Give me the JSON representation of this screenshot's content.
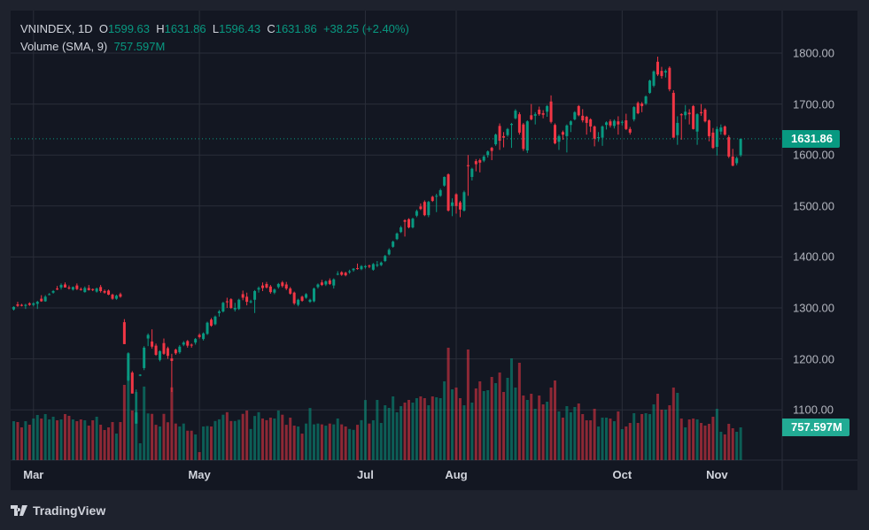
{
  "legend": {
    "symbol": "VNINDEX, 1D",
    "open_label": "O",
    "open": "1599.63",
    "high_label": "H",
    "high": "1631.86",
    "low_label": "L",
    "low": "1596.43",
    "close_label": "C",
    "close": "1631.86",
    "change": "+38.25 (+2.40%)",
    "volume_label": "Volume (SMA, 9)",
    "volume_value": "757.597M"
  },
  "price_badge": "1631.86",
  "volume_badge": "757.597M",
  "branding": "TradingView",
  "colors": {
    "up": "#089981",
    "down": "#f23645",
    "background": "#131722",
    "grid": "#2a2e39"
  },
  "chart_data": {
    "type": "candlestick",
    "symbol": "VNINDEX",
    "interval": "1D",
    "y_ticks": [
      1800,
      1700,
      1600,
      1500,
      1400,
      1300,
      1200,
      1100
    ],
    "y_tick_labels": [
      "1800.00",
      "1700.00",
      "1600.00",
      "1500.00",
      "1400.00",
      "1300.00",
      "1200.00",
      "1100.00"
    ],
    "x_tick_labels": [
      "Mar",
      "May",
      "Jul",
      "Aug",
      "Oct",
      "Nov"
    ],
    "grid": true,
    "last_price": 1631.86,
    "ohlc": [
      [
        1297,
        1303,
        1295,
        1302
      ],
      [
        1307,
        1312,
        1302,
        1304
      ],
      [
        1306,
        1308,
        1303,
        1304
      ],
      [
        1304,
        1308,
        1298,
        1306
      ],
      [
        1309,
        1311,
        1304,
        1306
      ],
      [
        1306,
        1311,
        1303,
        1309
      ],
      [
        1308,
        1314,
        1298,
        1312
      ],
      [
        1318,
        1325,
        1312,
        1313
      ],
      [
        1313,
        1325,
        1312,
        1322
      ],
      [
        1326,
        1329,
        1325,
        1327
      ],
      [
        1330,
        1335,
        1328,
        1333
      ],
      [
        1338,
        1343,
        1335,
        1336
      ],
      [
        1340,
        1348,
        1336,
        1345
      ],
      [
        1346,
        1350,
        1340,
        1340
      ],
      [
        1340,
        1344,
        1336,
        1339
      ],
      [
        1336,
        1342,
        1334,
        1341
      ],
      [
        1344,
        1348,
        1335,
        1337
      ],
      [
        1337,
        1340,
        1334,
        1335
      ],
      [
        1331,
        1342,
        1330,
        1339
      ],
      [
        1339,
        1345,
        1334,
        1335
      ],
      [
        1337,
        1338,
        1333,
        1335
      ],
      [
        1332,
        1340,
        1330,
        1338
      ],
      [
        1341,
        1345,
        1330,
        1333
      ],
      [
        1333,
        1336,
        1328,
        1330
      ],
      [
        1334,
        1336,
        1325,
        1326
      ],
      [
        1326,
        1328,
        1316,
        1318
      ],
      [
        1318,
        1326,
        1316,
        1324
      ],
      [
        1327,
        1330,
        1320,
        1322
      ],
      [
        1272,
        1278,
        1229,
        1229
      ],
      [
        1158,
        1213,
        1156,
        1211
      ],
      [
        1173,
        1176,
        1132,
        1132
      ],
      [
        1073,
        1140,
        1073,
        1095
      ],
      [
        1167,
        1170,
        1166,
        1169
      ],
      [
        1182,
        1225,
        1178,
        1222
      ],
      [
        1240,
        1250,
        1225,
        1247
      ],
      [
        1234,
        1258,
        1220,
        1224
      ],
      [
        1226,
        1230,
        1206,
        1208
      ],
      [
        1198,
        1217,
        1195,
        1215
      ],
      [
        1231,
        1240,
        1208,
        1210
      ],
      [
        1221,
        1224,
        1200,
        1206
      ],
      [
        1201,
        1210,
        1135,
        1196
      ],
      [
        1218,
        1220,
        1208,
        1211
      ],
      [
        1213,
        1227,
        1210,
        1224
      ],
      [
        1228,
        1235,
        1225,
        1232
      ],
      [
        1235,
        1237,
        1222,
        1226
      ],
      [
        1228,
        1230,
        1222,
        1226
      ],
      [
        1232,
        1241,
        1228,
        1239
      ],
      [
        1247,
        1250,
        1240,
        1243
      ],
      [
        1239,
        1252,
        1236,
        1250
      ],
      [
        1249,
        1273,
        1247,
        1271
      ],
      [
        1277,
        1280,
        1263,
        1265
      ],
      [
        1268,
        1285,
        1266,
        1283
      ],
      [
        1290,
        1296,
        1283,
        1293
      ],
      [
        1293,
        1312,
        1291,
        1310
      ],
      [
        1313,
        1320,
        1300,
        1311
      ],
      [
        1317,
        1319,
        1298,
        1300
      ],
      [
        1297,
        1310,
        1293,
        1300
      ],
      [
        1298,
        1318,
        1296,
        1316
      ],
      [
        1327,
        1334,
        1315,
        1320
      ],
      [
        1322,
        1330,
        1305,
        1312
      ],
      [
        1311,
        1316,
        1309,
        1313
      ],
      [
        1316,
        1335,
        1290,
        1333
      ],
      [
        1336,
        1342,
        1330,
        1339
      ],
      [
        1344,
        1350,
        1333,
        1339
      ],
      [
        1347,
        1351,
        1338,
        1340
      ],
      [
        1342,
        1345,
        1328,
        1331
      ],
      [
        1330,
        1338,
        1327,
        1336
      ],
      [
        1341,
        1349,
        1338,
        1347
      ],
      [
        1350,
        1353,
        1340,
        1343
      ],
      [
        1346,
        1351,
        1335,
        1338
      ],
      [
        1338,
        1341,
        1326,
        1328
      ],
      [
        1330,
        1332,
        1306,
        1309
      ],
      [
        1306,
        1318,
        1303,
        1316
      ],
      [
        1322,
        1324,
        1312,
        1314
      ],
      [
        1320,
        1329,
        1318,
        1327
      ],
      [
        1312,
        1318,
        1310,
        1316
      ],
      [
        1313,
        1340,
        1311,
        1338
      ],
      [
        1341,
        1348,
        1338,
        1346
      ],
      [
        1350,
        1355,
        1343,
        1345
      ],
      [
        1346,
        1354,
        1343,
        1352
      ],
      [
        1354,
        1358,
        1345,
        1347
      ],
      [
        1344,
        1358,
        1338,
        1356
      ],
      [
        1366,
        1372,
        1364,
        1367
      ],
      [
        1370,
        1372,
        1363,
        1365
      ],
      [
        1369,
        1371,
        1362,
        1364
      ],
      [
        1370,
        1375,
        1367,
        1372
      ],
      [
        1374,
        1378,
        1371,
        1377
      ],
      [
        1378,
        1387,
        1375,
        1377
      ],
      [
        1376,
        1384,
        1374,
        1382
      ],
      [
        1380,
        1384,
        1377,
        1382
      ],
      [
        1383,
        1385,
        1378,
        1381
      ],
      [
        1375,
        1388,
        1373,
        1386
      ],
      [
        1383,
        1392,
        1380,
        1385
      ],
      [
        1384,
        1391,
        1382,
        1389
      ],
      [
        1392,
        1404,
        1390,
        1402
      ],
      [
        1405,
        1417,
        1403,
        1414
      ],
      [
        1420,
        1432,
        1418,
        1430
      ],
      [
        1435,
        1448,
        1433,
        1446
      ],
      [
        1449,
        1461,
        1447,
        1458
      ],
      [
        1472,
        1474,
        1440,
        1469
      ],
      [
        1474,
        1476,
        1456,
        1458
      ],
      [
        1458,
        1477,
        1456,
        1475
      ],
      [
        1481,
        1493,
        1478,
        1490
      ],
      [
        1499,
        1505,
        1492,
        1494
      ],
      [
        1508,
        1511,
        1480,
        1482
      ],
      [
        1482,
        1510,
        1478,
        1508
      ],
      [
        1518,
        1520,
        1508,
        1510
      ],
      [
        1519,
        1524,
        1488,
        1520
      ],
      [
        1520,
        1534,
        1518,
        1531
      ],
      [
        1540,
        1558,
        1538,
        1557
      ],
      [
        1562,
        1564,
        1489,
        1491
      ],
      [
        1500,
        1515,
        1480,
        1507
      ],
      [
        1523,
        1525,
        1485,
        1500
      ],
      [
        1507,
        1510,
        1478,
        1493
      ],
      [
        1491,
        1530,
        1489,
        1527
      ],
      [
        1580,
        1600,
        1520,
        1578
      ],
      [
        1557,
        1575,
        1550,
        1573
      ],
      [
        1588,
        1592,
        1568,
        1582
      ],
      [
        1590,
        1593,
        1566,
        1585
      ],
      [
        1589,
        1600,
        1586,
        1597
      ],
      [
        1600,
        1609,
        1595,
        1607
      ],
      [
        1614,
        1616,
        1590,
        1608
      ],
      [
        1621,
        1642,
        1618,
        1640
      ],
      [
        1657,
        1662,
        1610,
        1628
      ],
      [
        1637,
        1645,
        1615,
        1634
      ],
      [
        1639,
        1653,
        1636,
        1651
      ],
      [
        1659,
        1663,
        1614,
        1661
      ],
      [
        1672,
        1690,
        1670,
        1687
      ],
      [
        1680,
        1684,
        1640,
        1644
      ],
      [
        1660,
        1663,
        1608,
        1612
      ],
      [
        1609,
        1668,
        1604,
        1666
      ],
      [
        1678,
        1700,
        1668,
        1670
      ],
      [
        1677,
        1684,
        1660,
        1680
      ],
      [
        1689,
        1695,
        1677,
        1680
      ],
      [
        1682,
        1688,
        1672,
        1679
      ],
      [
        1685,
        1698,
        1675,
        1696
      ],
      [
        1705,
        1717,
        1662,
        1665
      ],
      [
        1659,
        1662,
        1621,
        1623
      ],
      [
        1626,
        1640,
        1610,
        1637
      ],
      [
        1645,
        1648,
        1630,
        1640
      ],
      [
        1637,
        1660,
        1605,
        1658
      ],
      [
        1659,
        1668,
        1645,
        1666
      ],
      [
        1670,
        1686,
        1668,
        1684
      ],
      [
        1696,
        1698,
        1676,
        1678
      ],
      [
        1677,
        1690,
        1664,
        1668
      ],
      [
        1675,
        1677,
        1640,
        1663
      ],
      [
        1670,
        1672,
        1645,
        1656
      ],
      [
        1656,
        1658,
        1617,
        1632
      ],
      [
        1634,
        1645,
        1626,
        1635
      ],
      [
        1634,
        1658,
        1618,
        1656
      ],
      [
        1659,
        1666,
        1650,
        1664
      ],
      [
        1666,
        1670,
        1654,
        1658
      ],
      [
        1657,
        1670,
        1652,
        1667
      ],
      [
        1666,
        1676,
        1640,
        1660
      ],
      [
        1664,
        1668,
        1658,
        1665
      ],
      [
        1668,
        1681,
        1649,
        1651
      ],
      [
        1651,
        1655,
        1640,
        1644
      ],
      [
        1670,
        1696,
        1666,
        1694
      ],
      [
        1702,
        1705,
        1680,
        1682
      ],
      [
        1701,
        1704,
        1684,
        1696
      ],
      [
        1701,
        1717,
        1698,
        1715
      ],
      [
        1722,
        1748,
        1720,
        1746
      ],
      [
        1736,
        1766,
        1733,
        1764
      ],
      [
        1783,
        1793,
        1755,
        1758
      ],
      [
        1765,
        1773,
        1750,
        1755
      ],
      [
        1762,
        1768,
        1752,
        1765
      ],
      [
        1771,
        1774,
        1725,
        1729
      ],
      [
        1722,
        1727,
        1634,
        1634
      ],
      [
        1639,
        1676,
        1620,
        1663
      ],
      [
        1680,
        1682,
        1630,
        1678
      ],
      [
        1678,
        1698,
        1670,
        1685
      ],
      [
        1683,
        1690,
        1660,
        1680
      ],
      [
        1696,
        1698,
        1650,
        1651
      ],
      [
        1646,
        1682,
        1620,
        1680
      ],
      [
        1684,
        1700,
        1677,
        1682
      ],
      [
        1689,
        1692,
        1664,
        1666
      ],
      [
        1668,
        1670,
        1627,
        1637
      ],
      [
        1644,
        1653,
        1612,
        1614
      ],
      [
        1616,
        1656,
        1599,
        1651
      ],
      [
        1646,
        1660,
        1640,
        1654
      ],
      [
        1656,
        1658,
        1638,
        1640
      ],
      [
        1635,
        1639,
        1594,
        1597
      ],
      [
        1597,
        1612,
        1578,
        1579
      ],
      [
        1584,
        1597,
        1580,
        1594
      ],
      [
        1599.63,
        1631.86,
        1596.43,
        1631.86
      ]
    ],
    "volume_millions": [
      926,
      905,
      779,
      926,
      842,
      989,
      1074,
      989,
      1095,
      968,
      1032,
      947,
      968,
      1095,
      1053,
      968,
      926,
      968,
      947,
      821,
      947,
      1032,
      842,
      716,
      779,
      905,
      632,
      905,
      1790,
      2000,
      1180,
      1620,
      400,
      1750,
      1110,
      1100,
      840,
      800,
      1100,
      900,
      1730,
      870,
      800,
      870,
      700,
      700,
      610,
      190,
      800,
      810,
      800,
      930,
      970,
      1080,
      1140,
      930,
      930,
      960,
      1100,
      1180,
      740,
      1050,
      1140,
      990,
      950,
      1010,
      990,
      1180,
      1080,
      840,
      1010,
      820,
      800,
      630,
      870,
      1240,
      850,
      870,
      850,
      820,
      870,
      850,
      990,
      850,
      800,
      740,
      720,
      840,
      950,
      1430,
      870,
      947,
      1432,
      884,
      1305,
      1242,
      1516,
      1137,
      1284,
      1368,
      1432,
      1368,
      1474,
      1516,
      1474,
      1305,
      1516,
      1495,
      1474,
      1874,
      2674,
      1684,
      1726,
      1474,
      1305,
      2632,
      1368,
      1705,
      1874,
      1642,
      1663,
      1979,
      1832,
      2084,
      1621,
      1958,
      2421,
      1726,
      2316,
      1537,
      1432,
      1579,
      1221,
      1537,
      1326,
      1389,
      1726,
      1895,
      1158,
      1011,
      1284,
      1137,
      1263,
      1347,
      1095,
      947,
      947,
      1221,
      800,
      1011,
      1011,
      989,
      926,
      1158,
      737,
      800,
      884,
      1116,
      884,
      1095,
      1116,
      1095,
      1326,
      1579,
      1200,
      1200,
      1305,
      1726,
      1600,
      989,
      779,
      968,
      989,
      968,
      884,
      821,
      863,
      1032,
      1221,
      674,
      611,
      863,
      758,
      674,
      779
    ]
  }
}
